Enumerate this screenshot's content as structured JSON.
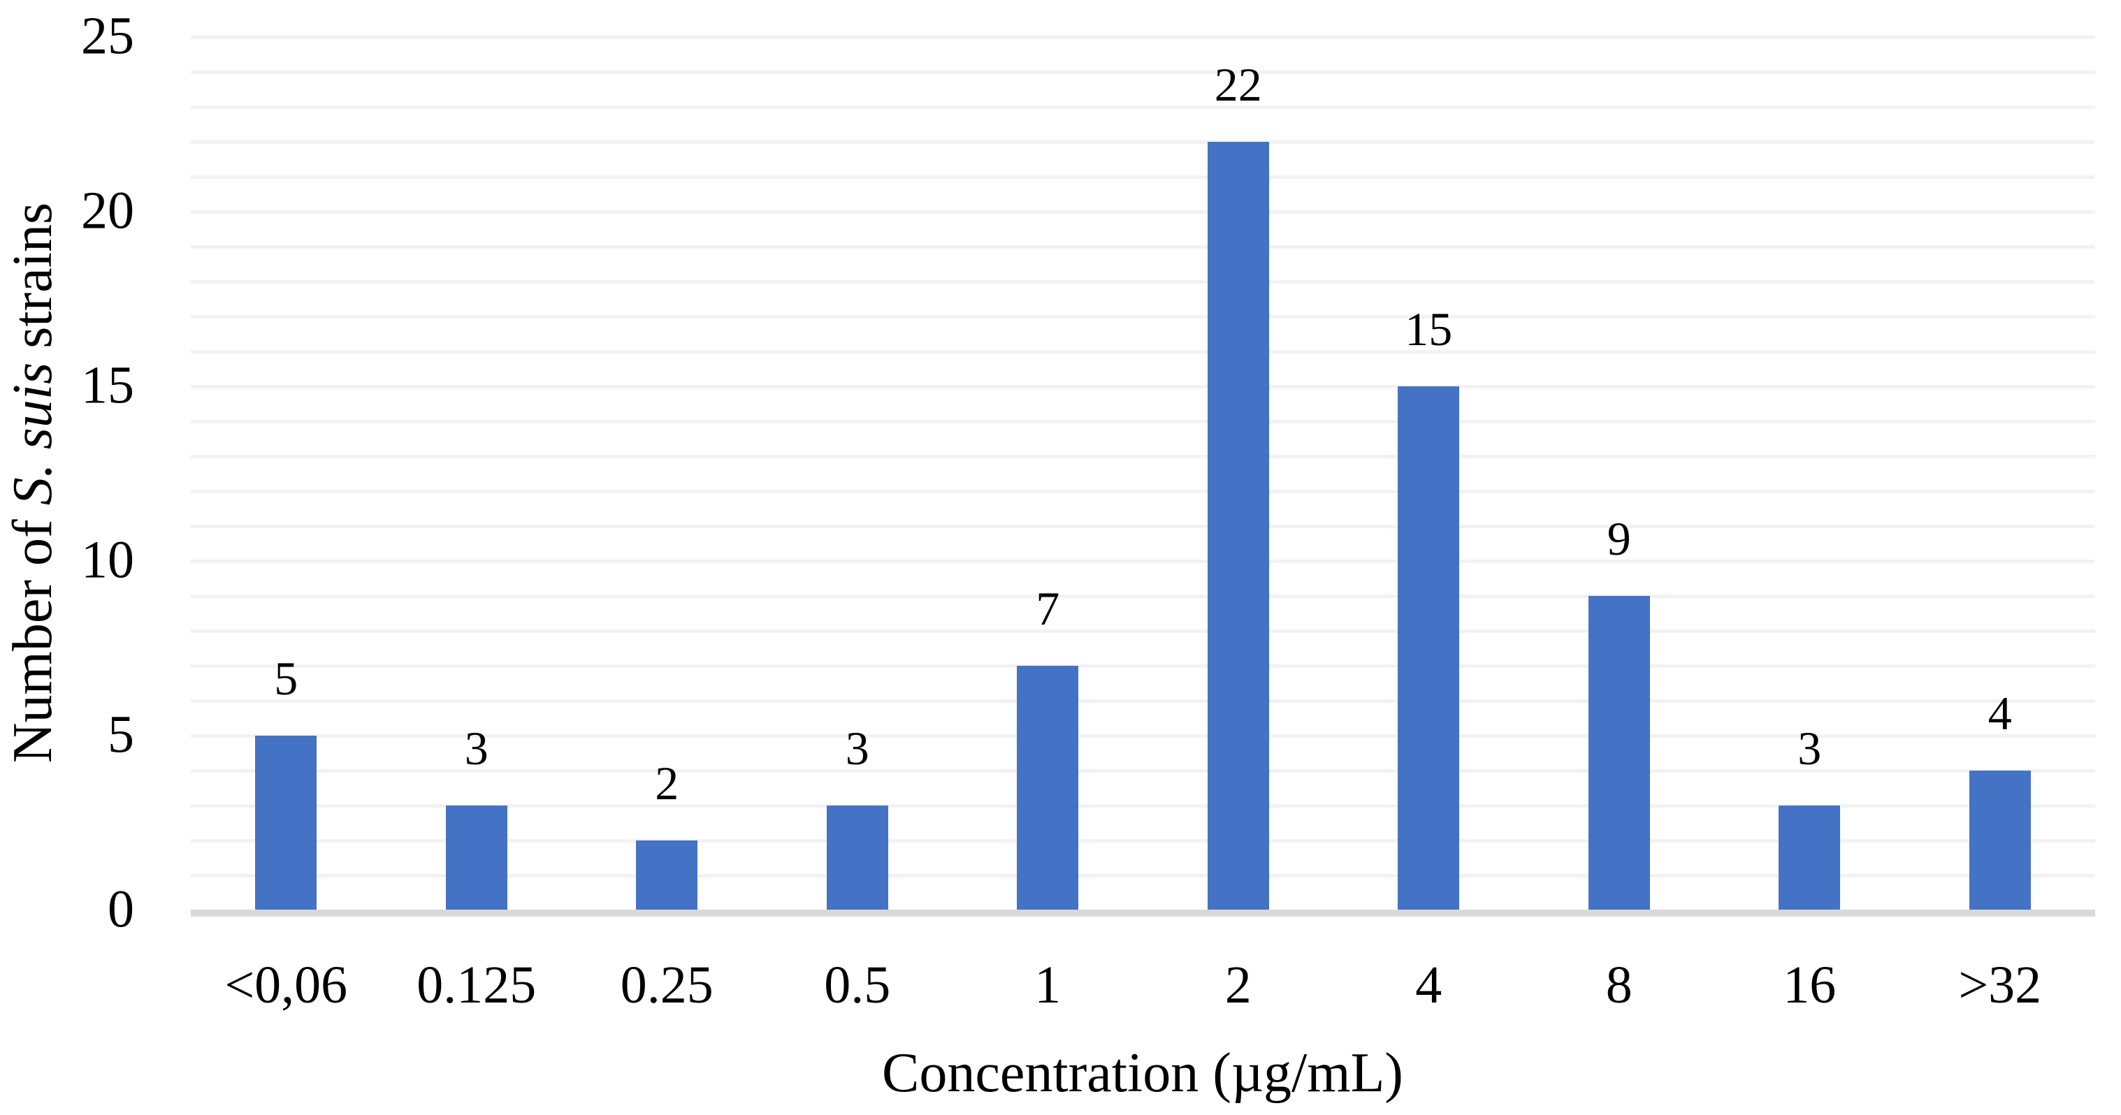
{
  "chart_data": {
    "type": "bar",
    "title": "",
    "categories": [
      "<0,06",
      "0.125",
      "0.25",
      "0.5",
      "1",
      "2",
      "4",
      "8",
      "16",
      ">32"
    ],
    "values": [
      5,
      3,
      2,
      3,
      7,
      22,
      15,
      9,
      3,
      4
    ],
    "series_name": "Number of S. suis strains",
    "xlabel": "Concentration (µg/mL)",
    "ylabel": "Number of S. suis strains",
    "ylabel_parts": [
      {
        "text": "Number of ",
        "italic": false
      },
      {
        "text": "S. suis",
        "italic": true
      },
      {
        "text": " strains",
        "italic": false
      }
    ],
    "y_ticks": [
      0,
      5,
      10,
      15,
      20,
      25
    ],
    "ylim": [
      0,
      25
    ],
    "grid": {
      "on": true,
      "step": 1,
      "color": "#F2F2F2",
      "axis_line_color": "#D9D9D9"
    },
    "bar_color": "#4472C4",
    "data_labels_shown": true,
    "legend_position": "none"
  }
}
